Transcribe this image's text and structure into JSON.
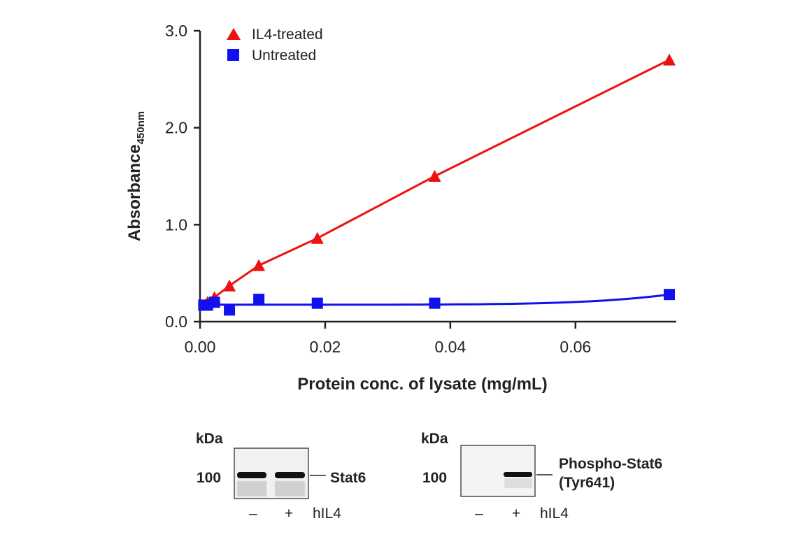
{
  "chart_data": {
    "type": "scatter",
    "title": "",
    "xlabel": "Protein conc. of lysate (mg/mL)",
    "ylabel_main": "Absorbance",
    "ylabel_sub": "450nm",
    "xlim": [
      0,
      0.075
    ],
    "ylim": [
      0,
      3.0
    ],
    "xticks": [
      0,
      0.02,
      0.04,
      0.06
    ],
    "xtick_labels": [
      "0.00",
      "0.02",
      "0.04",
      "0.06"
    ],
    "yticks": [
      0,
      1,
      2,
      3
    ],
    "ytick_labels": [
      "0.0",
      "1.0",
      "2.0",
      "3.0"
    ],
    "grid": false,
    "legend_position": "top-left",
    "series": [
      {
        "name": "IL4-treated",
        "marker": "triangle",
        "color": "#ee1111",
        "x": [
          0.0012,
          0.0023,
          0.0047,
          0.0094,
          0.01875,
          0.0375,
          0.075
        ],
        "y": [
          0.2,
          0.25,
          0.37,
          0.58,
          0.86,
          1.5,
          2.7
        ]
      },
      {
        "name": "Untreated",
        "marker": "square",
        "color": "#1111ee",
        "x": [
          0.0006,
          0.0012,
          0.0023,
          0.0047,
          0.0094,
          0.01875,
          0.0375,
          0.075
        ],
        "y": [
          0.17,
          0.17,
          0.2,
          0.12,
          0.23,
          0.19,
          0.19,
          0.28
        ]
      }
    ]
  },
  "blots": [
    {
      "kda_label": "kDa",
      "marker": "100",
      "target": [
        "Stat6"
      ],
      "lanes": [
        "–",
        "+"
      ],
      "treatment": "hIL4"
    },
    {
      "kda_label": "kDa",
      "marker": "100",
      "target": [
        "Phospho-Stat6",
        "(Tyr641)"
      ],
      "lanes": [
        "–",
        "+"
      ],
      "treatment": "hIL4"
    }
  ]
}
